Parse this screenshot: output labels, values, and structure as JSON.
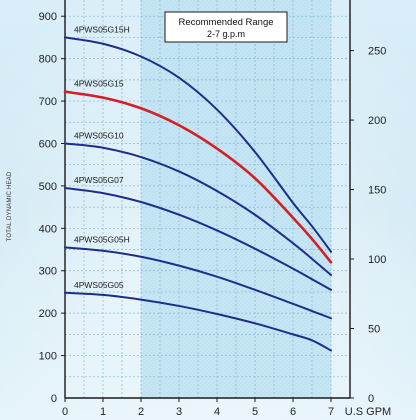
{
  "chart_data": {
    "type": "line",
    "ylabel": "TOTAL DYNAMIC HEAD",
    "x_unit": "U.S GPM",
    "annotation": {
      "title": "Recommended Range",
      "subtitle": "2-7 g.p.m"
    },
    "recommended_range": [
      2,
      7
    ],
    "xlim": [
      0,
      7.5
    ],
    "ylim_left": [
      0,
      950
    ],
    "ylim_right": [
      0,
      290
    ],
    "x_ticks": [
      0,
      1,
      2,
      3,
      4,
      5,
      6,
      7
    ],
    "y_ticks_left": [
      0,
      100,
      200,
      300,
      400,
      500,
      600,
      700,
      800,
      900
    ],
    "y_ticks_right": [
      0,
      50,
      100,
      150,
      200,
      250
    ],
    "grid": true,
    "series": [
      {
        "name": "4PWS05G15H",
        "color": "#1f2d8a",
        "x": [
          0,
          1,
          2,
          3,
          4,
          5,
          6,
          6.5,
          7
        ],
        "y": [
          850,
          835,
          805,
          755,
          680,
          580,
          460,
          405,
          345
        ]
      },
      {
        "name": "4PWS05G15",
        "color": "#d41f26",
        "x": [
          0,
          1,
          2,
          3,
          4,
          5,
          6,
          6.5,
          7
        ],
        "y": [
          722,
          708,
          683,
          643,
          588,
          518,
          425,
          375,
          320
        ]
      },
      {
        "name": "4PWS05G10",
        "color": "#1f2d8a",
        "x": [
          0,
          1,
          2,
          3,
          4,
          5,
          6,
          6.5,
          7
        ],
        "y": [
          600,
          590,
          568,
          534,
          488,
          432,
          365,
          328,
          290
        ]
      },
      {
        "name": "4PWS05G07",
        "color": "#1f2d8a",
        "x": [
          0,
          1,
          2,
          3,
          4,
          5,
          6,
          6.5,
          7
        ],
        "y": [
          495,
          483,
          462,
          432,
          395,
          352,
          305,
          280,
          255
        ]
      },
      {
        "name": "4PWS05G05H",
        "color": "#1f2d8a",
        "x": [
          0,
          1,
          2,
          3,
          4,
          5,
          6,
          6.5,
          7
        ],
        "y": [
          355,
          347,
          333,
          312,
          286,
          255,
          222,
          205,
          188
        ]
      },
      {
        "name": "4PWS05G05",
        "color": "#1f2d8a",
        "x": [
          0,
          1,
          2,
          3,
          4,
          5,
          6,
          6.5,
          7
        ],
        "y": [
          248,
          243,
          232,
          217,
          198,
          176,
          150,
          136,
          112
        ]
      }
    ]
  }
}
